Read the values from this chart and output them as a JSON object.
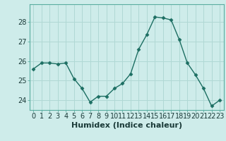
{
  "x": [
    0,
    1,
    2,
    3,
    4,
    5,
    6,
    7,
    8,
    9,
    10,
    11,
    12,
    13,
    14,
    15,
    16,
    17,
    18,
    19,
    20,
    21,
    22,
    23
  ],
  "y": [
    25.6,
    25.9,
    25.9,
    25.85,
    25.9,
    25.1,
    24.6,
    23.9,
    24.2,
    24.2,
    24.6,
    24.85,
    25.35,
    26.6,
    27.35,
    28.25,
    28.2,
    28.1,
    27.1,
    25.9,
    25.3,
    24.6,
    23.7,
    24.0
  ],
  "line_color": "#1c6e62",
  "marker": "D",
  "marker_size": 2.5,
  "bg_color": "#ceecea",
  "grid_color": "#b0d8d4",
  "xlabel": "Humidex (Indice chaleur)",
  "xlabel_fontsize": 8,
  "ylabel_ticks": [
    24,
    25,
    26,
    27,
    28
  ],
  "xlim": [
    -0.5,
    23.5
  ],
  "ylim": [
    23.5,
    28.9
  ],
  "tick_fontsize": 7,
  "spine_color": "#5aada0"
}
